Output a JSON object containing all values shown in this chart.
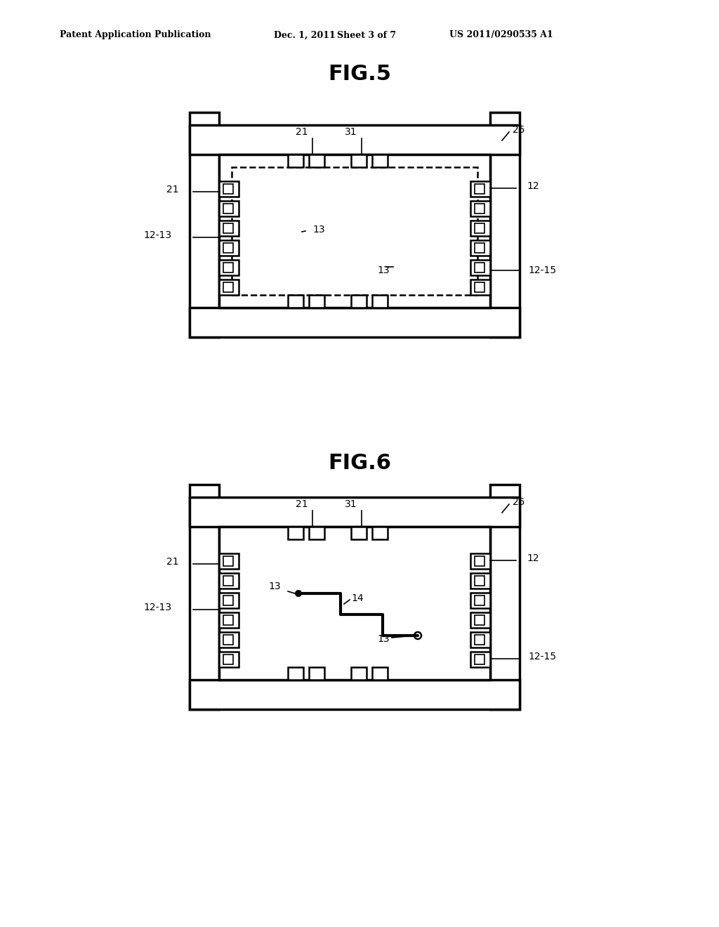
{
  "bg_color": "#ffffff",
  "line_color": "#000000",
  "header_text": "Patent Application Publication",
  "header_date": "Dec. 1, 2011",
  "header_sheet": "Sheet 3 of 7",
  "header_patent": "US 2011/0290535 A1",
  "fig5_title": "FIG.5",
  "fig6_title": "FIG.6"
}
